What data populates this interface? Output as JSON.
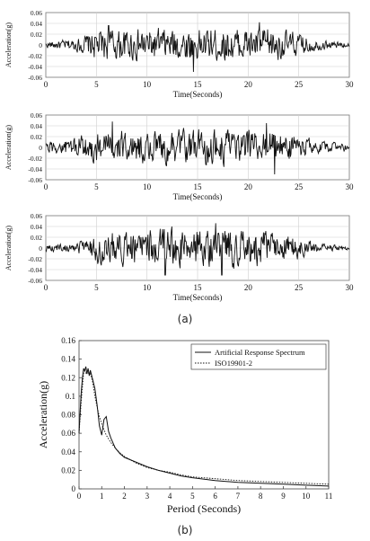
{
  "caption_a": "(a)",
  "caption_b": "(b)",
  "chart_data": [
    {
      "type": "line",
      "xlabel": "Time(Seconds)",
      "ylabel": "Acceleration(g)",
      "xlim": [
        0,
        30
      ],
      "ylim": [
        -0.06,
        0.06
      ],
      "xticks": [
        0,
        5,
        10,
        15,
        20,
        25,
        30
      ],
      "yticks": [
        "0.06",
        "0.04",
        "0.02",
        "0",
        "-0.02",
        "-0.04",
        "-0.06"
      ],
      "grid": true,
      "envelope": [
        [
          0,
          0.006
        ],
        [
          3,
          0.012
        ],
        [
          5,
          0.03
        ],
        [
          12,
          0.032
        ],
        [
          22,
          0.033
        ],
        [
          25,
          0.022
        ],
        [
          27,
          0.01
        ],
        [
          30,
          0.004
        ]
      ],
      "peaks": [
        [
          14.6,
          -0.05
        ],
        [
          21.1,
          0.042
        ],
        [
          6.2,
          0.036
        ]
      ]
    },
    {
      "type": "line",
      "xlabel": "Time(Seconds)",
      "ylabel": "Acceleration(g)",
      "xlim": [
        0,
        30
      ],
      "ylim": [
        -0.06,
        0.06
      ],
      "xticks": [
        0,
        5,
        10,
        15,
        20,
        25,
        30
      ],
      "yticks": [
        "0.06",
        "0.04",
        "0.02",
        "0",
        "-0.02",
        "-0.04",
        "-0.06"
      ],
      "grid": true,
      "envelope": [
        [
          0,
          0.01
        ],
        [
          2,
          0.018
        ],
        [
          5,
          0.03
        ],
        [
          12,
          0.032
        ],
        [
          23,
          0.033
        ],
        [
          25,
          0.022
        ],
        [
          27,
          0.012
        ],
        [
          30,
          0.007
        ]
      ],
      "peaks": [
        [
          6.6,
          0.048
        ],
        [
          22.6,
          -0.05
        ],
        [
          21.8,
          0.045
        ]
      ]
    },
    {
      "type": "line",
      "xlabel": "Time(Seconds)",
      "ylabel": "Acceleration(g)",
      "xlim": [
        0,
        30
      ],
      "ylim": [
        -0.06,
        0.06
      ],
      "xticks": [
        0,
        5,
        10,
        15,
        20,
        25,
        30
      ],
      "yticks": [
        "0.06",
        "0.04",
        "0.02",
        "0",
        "-0.02",
        "-0.04",
        "-0.06"
      ],
      "grid": true,
      "envelope": [
        [
          0,
          0.006
        ],
        [
          3,
          0.008
        ],
        [
          4.5,
          0.03
        ],
        [
          12,
          0.036
        ],
        [
          23,
          0.035
        ],
        [
          25,
          0.02
        ],
        [
          27,
          0.008
        ],
        [
          30,
          0.004
        ]
      ],
      "peaks": [
        [
          16.8,
          0.046
        ],
        [
          17.4,
          -0.05
        ],
        [
          11.8,
          -0.05
        ]
      ]
    },
    {
      "type": "line",
      "xlabel": "Period (Seconds)",
      "ylabel": "Acceleration(g)",
      "xlim": [
        0,
        11
      ],
      "ylim": [
        0,
        0.16
      ],
      "xticks": [
        0,
        1,
        2,
        3,
        4,
        5,
        6,
        7,
        8,
        9,
        10,
        11
      ],
      "yticks": [
        "0",
        "0.02",
        "0.04",
        "0.06",
        "0.08",
        "0.1",
        "0.12",
        "0.14",
        "0.16"
      ],
      "grid": false,
      "legend": "top-right",
      "series": [
        {
          "name": "Artificial Response Spectrum",
          "style": "solid",
          "x": [
            0,
            0.05,
            0.1,
            0.15,
            0.2,
            0.25,
            0.3,
            0.35,
            0.4,
            0.45,
            0.5,
            0.6,
            0.7,
            0.8,
            0.9,
            1.0,
            1.1,
            1.2,
            1.3,
            1.4,
            1.6,
            1.8,
            2.0,
            2.2,
            2.5,
            3.0,
            3.5,
            4.0,
            4.5,
            5.0,
            6.0,
            7.0,
            8.0,
            9.0,
            10.0,
            11.0
          ],
          "y": [
            0.06,
            0.085,
            0.105,
            0.12,
            0.13,
            0.127,
            0.132,
            0.124,
            0.13,
            0.122,
            0.128,
            0.118,
            0.108,
            0.09,
            0.068,
            0.058,
            0.075,
            0.078,
            0.062,
            0.055,
            0.044,
            0.038,
            0.034,
            0.032,
            0.029,
            0.024,
            0.02,
            0.017,
            0.014,
            0.012,
            0.009,
            0.007,
            0.006,
            0.005,
            0.004,
            0.003
          ]
        },
        {
          "name": "ISO19901-2",
          "style": "dotted",
          "x": [
            0,
            0.05,
            0.1,
            0.15,
            0.2,
            0.3,
            0.4,
            0.5,
            0.6,
            0.7,
            0.8,
            0.9,
            1.0,
            1.2,
            1.4,
            1.6,
            1.8,
            2.0,
            2.5,
            3.0,
            3.5,
            4.0,
            4.5,
            5.0,
            6.0,
            7.0,
            8.0,
            9.0,
            10.0,
            11.0
          ],
          "y": [
            0.06,
            0.078,
            0.095,
            0.11,
            0.125,
            0.125,
            0.125,
            0.125,
            0.115,
            0.1,
            0.088,
            0.078,
            0.07,
            0.058,
            0.05,
            0.044,
            0.039,
            0.035,
            0.028,
            0.023,
            0.02,
            0.018,
            0.015,
            0.013,
            0.011,
            0.009,
            0.008,
            0.007,
            0.006,
            0.005
          ]
        }
      ]
    }
  ]
}
